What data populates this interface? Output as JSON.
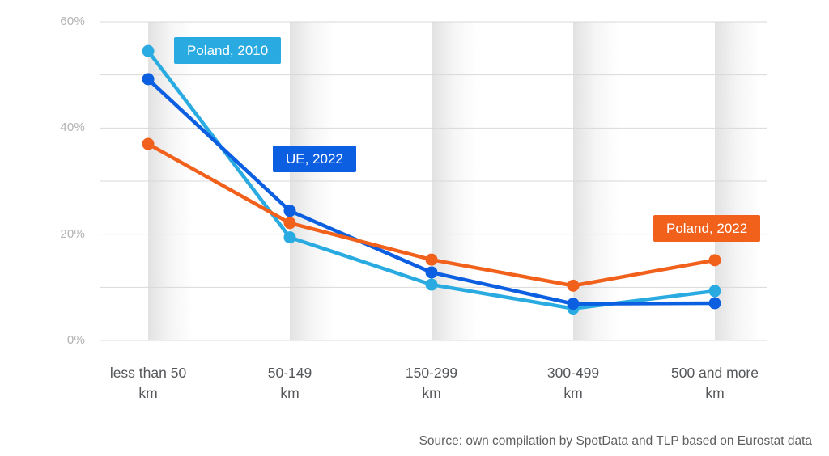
{
  "chart_data": {
    "type": "line",
    "title": "",
    "xlabel": "",
    "ylabel": "",
    "categories": [
      {
        "line1": "less than 50",
        "line2": "km"
      },
      {
        "line1": "50-149",
        "line2": "km"
      },
      {
        "line1": "150-299",
        "line2": "km"
      },
      {
        "line1": "300-499",
        "line2": "km"
      },
      {
        "line1": "500 and more",
        "line2": "km"
      }
    ],
    "series": [
      {
        "name": "Poland, 2010",
        "color": "#29ABE2",
        "values": [
          54.5,
          19.4,
          10.5,
          6.0,
          9.3
        ]
      },
      {
        "name": "UE, 2022",
        "color": "#0B5FE0",
        "values": [
          49.2,
          24.4,
          12.8,
          6.9,
          7.0
        ]
      },
      {
        "name": "Poland, 2022",
        "color": "#F1611C",
        "values": [
          37.0,
          22.1,
          15.2,
          10.3,
          15.1
        ]
      }
    ],
    "ylim": [
      0,
      60
    ],
    "ytick_values": [
      0,
      20,
      40,
      60
    ],
    "ytick_labels": [
      "0%",
      "20%",
      "40%",
      "60%"
    ],
    "gridline_step": 10,
    "grid": "horizontal",
    "legend_position": "inline-badges-near-lines"
  },
  "source": {
    "text": "Source: own compilation by SpotData and TLP based on Eurostat data"
  },
  "colors": {
    "background": "#ffffff",
    "gridline": "#d9d9d9",
    "band_shade": "#9e9e9e",
    "ytick_text": "#b2b2b2",
    "xlabel_text": "#54565a",
    "source_text": "#5d5e60"
  }
}
